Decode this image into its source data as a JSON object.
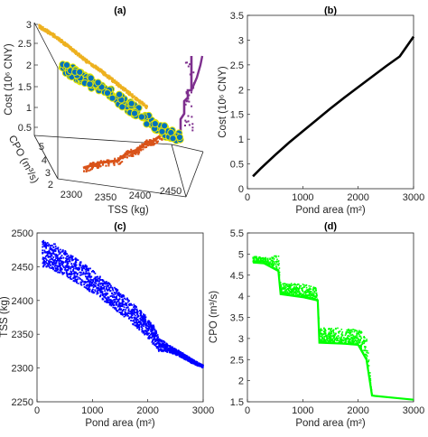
{
  "chart_data": [
    {
      "id": "a",
      "type": "scatter",
      "title": "(a)",
      "projection": "3d",
      "xlabel": "TSS (kg)",
      "ylabel": "CPO (m³/s)",
      "zlabel": "Cost (10⁶ CNY)",
      "x_ticks": [
        "2300",
        "2350",
        "2400",
        "2450"
      ],
      "y_ticks": [
        "2",
        "3",
        "4",
        "5"
      ],
      "z_ticks": [
        "0.5",
        "1",
        "1.5",
        "2",
        "2.5",
        "3"
      ],
      "series": [
        {
          "name": "",
          "color": "#EDB120",
          "plane": "cost-TSS projection",
          "points": [
            [
              2475,
              3.0
            ],
            [
              2465,
              2.85
            ],
            [
              2455,
              2.7
            ],
            [
              2440,
              2.5
            ],
            [
              2425,
              2.3
            ],
            [
              2410,
              2.1
            ],
            [
              2395,
              1.9
            ],
            [
              2380,
              1.75
            ],
            [
              2365,
              1.55
            ],
            [
              2350,
              1.35
            ],
            [
              2335,
              1.15
            ],
            [
              2320,
              0.95
            ],
            [
              2305,
              0.75
            ],
            [
              2298,
              0.55
            ]
          ]
        },
        {
          "name": "",
          "color": "#7E2F8E",
          "plane": "cost-CPO projection",
          "points": [
            [
              1.5,
              3.0
            ],
            [
              1.8,
              2.3
            ],
            [
              2.2,
              1.9
            ],
            [
              2.9,
              1.6
            ],
            [
              3.0,
              1.3
            ],
            [
              3.5,
              1.1
            ],
            [
              4.0,
              0.85
            ],
            [
              4.8,
              0.3
            ]
          ]
        },
        {
          "name": "",
          "color": "#D95319",
          "plane": "CPO-TSS projection",
          "points": [
            [
              2300,
              1.5
            ],
            [
              2340,
              2.0
            ],
            [
              2370,
              2.9
            ],
            [
              2400,
              3.2
            ],
            [
              2420,
              3.9
            ],
            [
              2440,
              4.2
            ],
            [
              2460,
              4.8
            ],
            [
              2480,
              4.9
            ]
          ]
        },
        {
          "name": "",
          "color": "#0072BD",
          "edge": "#E6E600",
          "plane": "3-D Pareto set",
          "points": [
            [
              2475,
              4.9,
              2.8
            ],
            [
              2460,
              4.7,
              2.45
            ],
            [
              2440,
              4.2,
              2.1
            ],
            [
              2420,
              4.0,
              1.8
            ],
            [
              2400,
              3.2,
              1.5
            ],
            [
              2375,
              3.0,
              1.2
            ],
            [
              2350,
              2.9,
              0.95
            ],
            [
              2320,
              1.8,
              0.7
            ],
            [
              2300,
              1.5,
              0.45
            ]
          ]
        }
      ]
    },
    {
      "id": "b",
      "type": "line",
      "title": "(b)",
      "xlabel": "Pond area (m²)",
      "ylabel": "Cost (10⁶ CNY)",
      "xlim": [
        0,
        3000
      ],
      "ylim": [
        0,
        3.5
      ],
      "x_ticks": [
        0,
        1000,
        2000,
        3000
      ],
      "y_ticks": [
        0,
        0.5,
        1,
        1.5,
        2,
        2.5,
        3,
        3.5
      ],
      "y_tick_labels": [
        "0",
        "0.5",
        "1",
        "1.5",
        "2",
        "2.5",
        "3",
        "3.5"
      ],
      "series": [
        {
          "name": "",
          "color": "#000000",
          "x": [
            100,
            250,
            500,
            750,
            1000,
            1250,
            1500,
            1750,
            2000,
            2250,
            2500,
            2750,
            3000
          ],
          "y": [
            0.25,
            0.42,
            0.68,
            0.93,
            1.16,
            1.39,
            1.62,
            1.84,
            2.05,
            2.26,
            2.47,
            2.67,
            3.07
          ]
        }
      ]
    },
    {
      "id": "c",
      "type": "scatter",
      "title": "(c)",
      "xlabel": "Pond area (m²)",
      "ylabel": "TSS (kg)",
      "xlim": [
        0,
        3000
      ],
      "ylim": [
        2250,
        2500
      ],
      "x_ticks": [
        0,
        1000,
        2000,
        3000
      ],
      "y_ticks": [
        2250,
        2300,
        2350,
        2400,
        2450,
        2500
      ],
      "series": [
        {
          "name": "",
          "color": "#0000FF",
          "trend_x": [
            100,
            300,
            500,
            800,
            1000,
            1300,
            1600,
            1900,
            2100,
            2200,
            2400,
            2600,
            2800,
            3000
          ],
          "trend_y": [
            2470,
            2465,
            2455,
            2440,
            2428,
            2410,
            2390,
            2368,
            2350,
            2335,
            2328,
            2320,
            2310,
            2302
          ],
          "spread": [
            20,
            20,
            19,
            18,
            17,
            16,
            16,
            15,
            15,
            10,
            5,
            4,
            3,
            2
          ]
        }
      ]
    },
    {
      "id": "d",
      "type": "scatter",
      "title": "(d)",
      "xlabel": "Pond area (m²)",
      "ylabel": "CPO (m³/s)",
      "xlim": [
        0,
        3000
      ],
      "ylim": [
        1.5,
        5.5
      ],
      "x_ticks": [
        0,
        1000,
        2000,
        3000
      ],
      "y_ticks": [
        1.5,
        2,
        2.5,
        3,
        3.5,
        4,
        4.5,
        5,
        5.5
      ],
      "y_tick_labels": [
        "1.5",
        "2",
        "2.5",
        "3",
        "3.5",
        "4",
        "4.5",
        "5",
        "5.5"
      ],
      "series": [
        {
          "name": "",
          "color": "#00FF00",
          "floor_x": [
            100,
            300,
            560,
            600,
            1000,
            1270,
            1300,
            1700,
            2000,
            2150,
            2250,
            2300,
            2600,
            3000
          ],
          "floor_y": [
            4.8,
            4.78,
            4.6,
            4.05,
            3.98,
            3.9,
            2.9,
            2.88,
            2.85,
            2.5,
            1.65,
            1.64,
            1.6,
            1.55
          ],
          "upper_x": [
            100,
            400,
            560,
            600,
            1000,
            1250,
            1300,
            1700,
            2000,
            2150,
            2250
          ],
          "upper_y": [
            4.95,
            4.9,
            5.0,
            4.3,
            4.3,
            4.2,
            3.25,
            3.25,
            3.2,
            3.1,
            1.7
          ]
        }
      ]
    }
  ]
}
